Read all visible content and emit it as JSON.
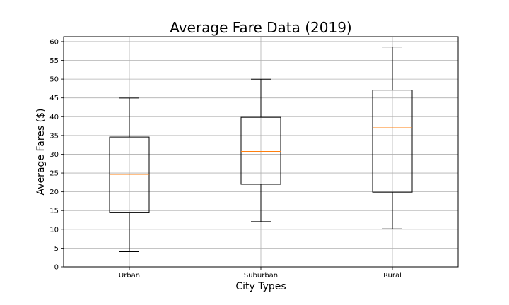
{
  "chart_data": {
    "type": "box",
    "title": "Average Fare Data (2019)",
    "xlabel": "City Types",
    "ylabel": "Average Fares ($)",
    "categories": [
      "Urban",
      "Suburban",
      "Rural"
    ],
    "boxes": [
      {
        "name": "Urban",
        "whisker_low": 4.05,
        "q1": 14.55,
        "median": 24.64,
        "q3": 34.58,
        "whisker_high": 44.97
      },
      {
        "name": "Suburban",
        "whisker_low": 12.05,
        "q1": 22.0,
        "median": 30.75,
        "q3": 39.83,
        "whisker_high": 49.96
      },
      {
        "name": "Rural",
        "whisker_low": 10.11,
        "q1": 19.9,
        "median": 37.05,
        "q3": 47.07,
        "whisker_high": 58.55
      }
    ],
    "ylim": [
      0,
      61.3
    ],
    "yticks": [
      0,
      5,
      10,
      15,
      20,
      25,
      30,
      35,
      40,
      45,
      50,
      55,
      60
    ],
    "grid": true,
    "colors": {
      "box": "#000000",
      "median": "#ff7f0e",
      "grid": "#b0b0b0"
    }
  }
}
